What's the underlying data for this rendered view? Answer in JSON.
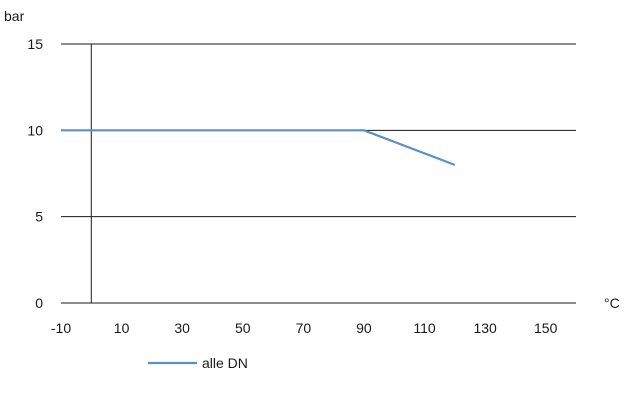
{
  "chart_data": {
    "type": "line",
    "title": "",
    "xlabel": "°C",
    "ylabel": "bar",
    "xlim": [
      -10,
      160
    ],
    "ylim": [
      0,
      15
    ],
    "x_ticks": [
      -10,
      10,
      30,
      50,
      70,
      90,
      110,
      130,
      150
    ],
    "y_ticks": [
      0,
      5,
      10,
      15
    ],
    "grid": "horizontal",
    "legend_position": "bottom-left",
    "series": [
      {
        "name": "alle DN",
        "color": "#5b8fc7",
        "points": [
          [
            -10,
            10
          ],
          [
            90,
            10
          ],
          [
            120,
            8
          ]
        ]
      }
    ]
  }
}
